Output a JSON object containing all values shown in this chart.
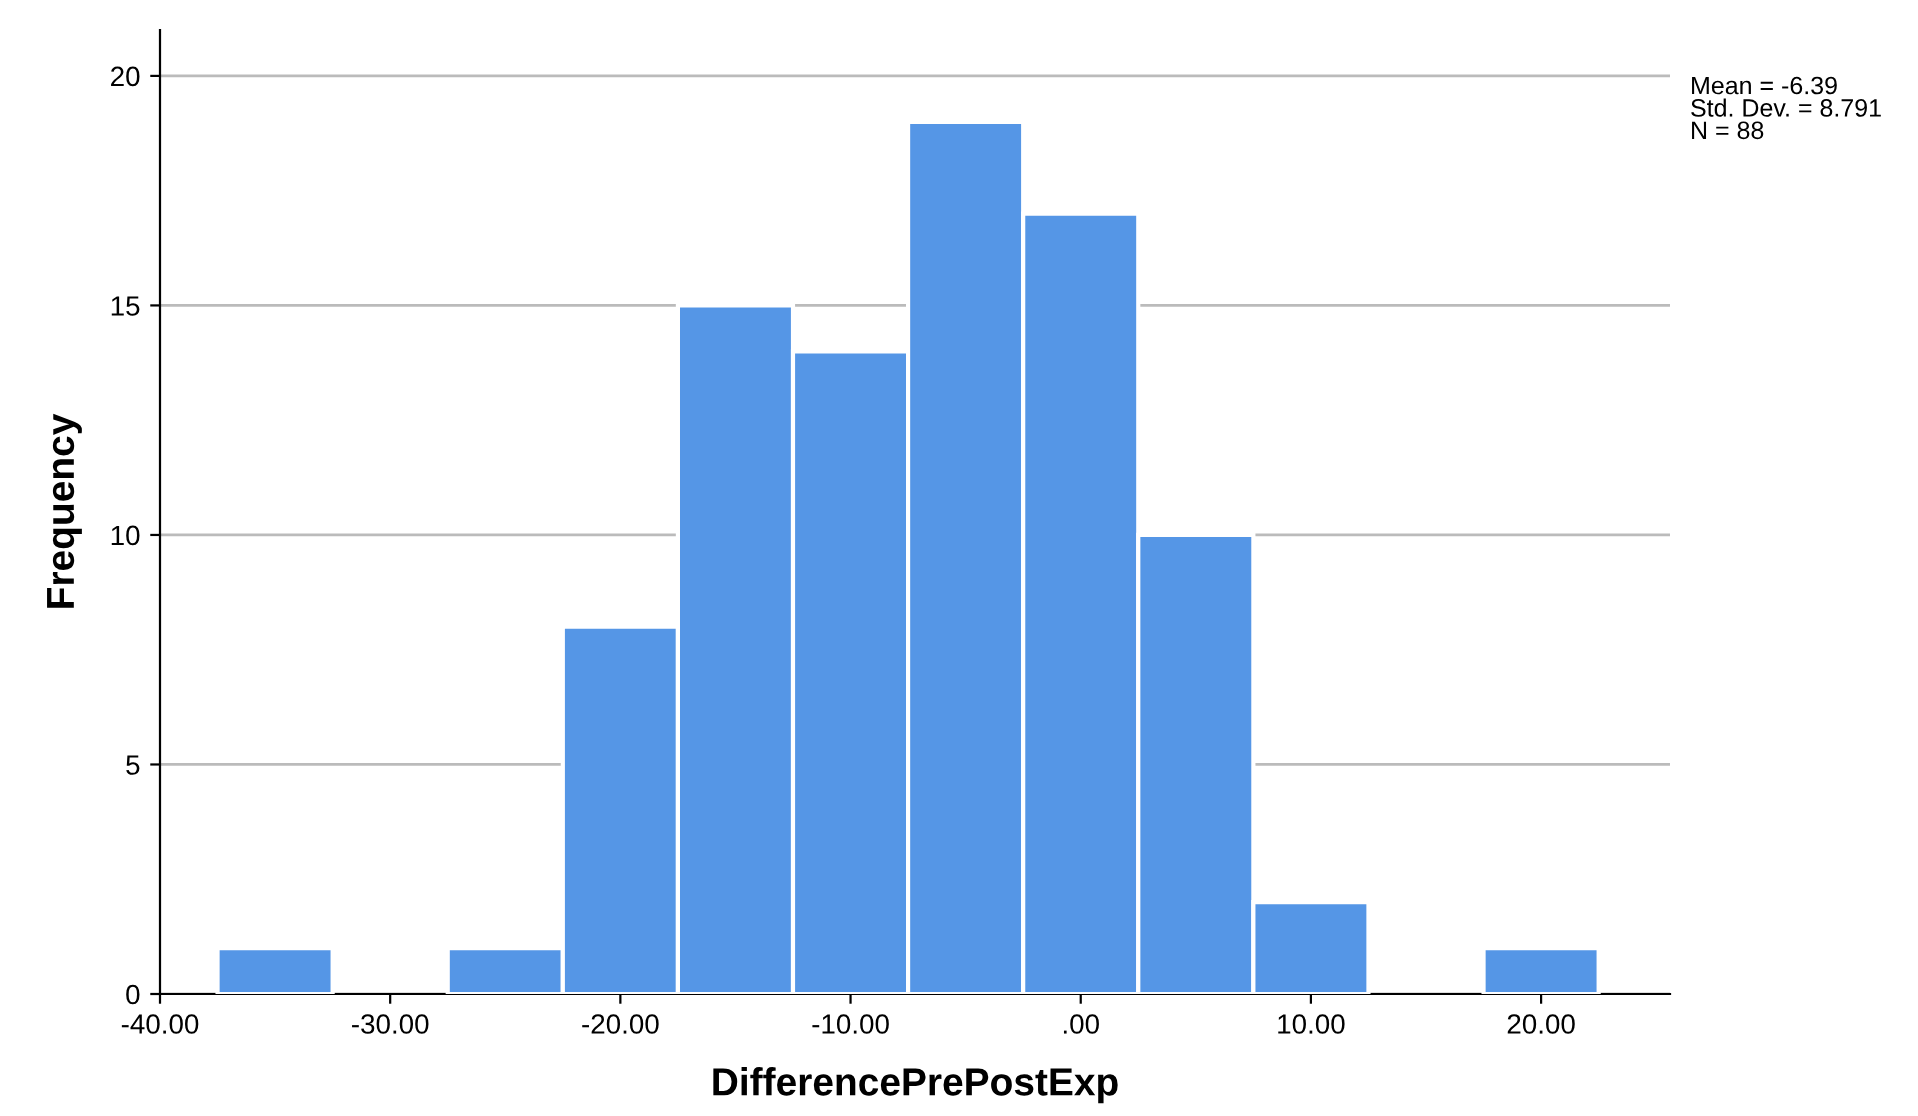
{
  "chart_data": {
    "type": "histogram",
    "xlabel": "DifferencePrePostExp",
    "ylabel": "Frequency",
    "bins": [
      -37.5,
      -32.5,
      -27.5,
      -22.5,
      -17.5,
      -12.5,
      -7.5,
      -2.5,
      2.5,
      7.5,
      12.5,
      17.5,
      22.5
    ],
    "values": [
      1,
      0,
      1,
      8,
      15,
      14,
      19,
      17,
      10,
      2,
      0,
      1
    ],
    "color": "#5596e6",
    "xlim": [
      -40,
      25.6
    ],
    "xticks": [
      {
        "value": -40,
        "label": "-40.00"
      },
      {
        "value": -30,
        "label": "-30.00"
      },
      {
        "value": -20,
        "label": "-20.00"
      },
      {
        "value": -10,
        "label": "-10.00"
      },
      {
        "value": 0,
        "label": ".00"
      },
      {
        "value": 10,
        "label": "10.00"
      },
      {
        "value": 20,
        "label": "20.00"
      }
    ],
    "ylim": [
      0,
      21
    ],
    "yticks": [
      0,
      5,
      10,
      15,
      20
    ],
    "grid": "y",
    "annotations": [
      "Mean = -6.39\nStd. Dev. = 8.791\nN = 88"
    ]
  }
}
